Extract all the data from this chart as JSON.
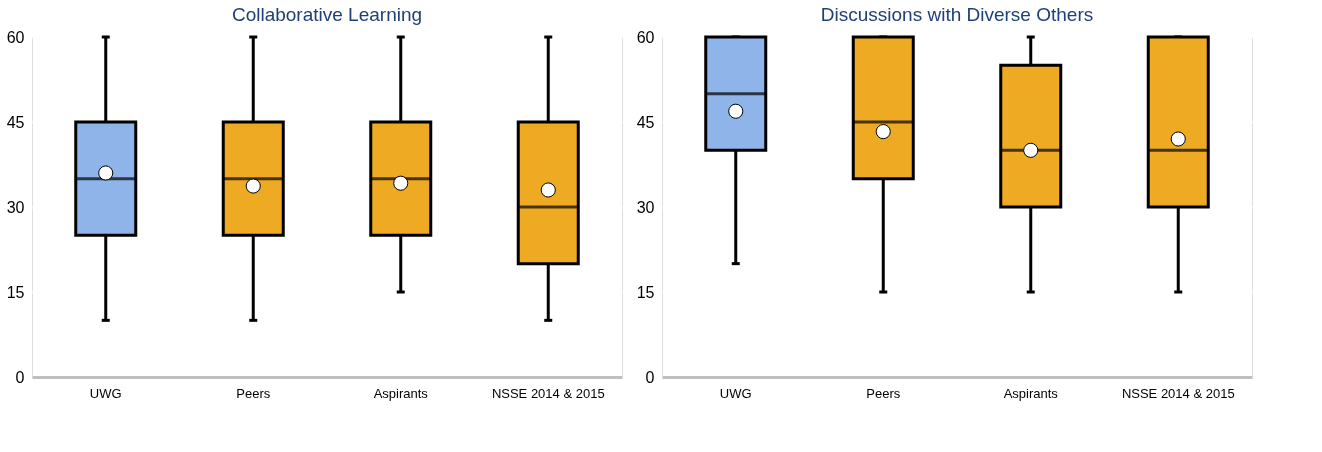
{
  "chart_data": [
    {
      "type": "box",
      "title": "Collaborative Learning",
      "categories": [
        "UWG",
        "Peers",
        "Aspirants",
        "NSSE 2014 & 2015"
      ],
      "colors": [
        "#8eb4ea",
        "#eeaa22",
        "#eeaa22",
        "#eeaa22"
      ],
      "boxes": [
        {
          "low": 10,
          "q1": 25,
          "median": 35,
          "q3": 45,
          "high": 60,
          "mean": 36.0
        },
        {
          "low": 10,
          "q1": 25,
          "median": 35,
          "q3": 45,
          "high": 60,
          "mean": 33.7
        },
        {
          "low": 15,
          "q1": 25,
          "median": 35,
          "q3": 45,
          "high": 60,
          "mean": 34.2
        },
        {
          "low": 10,
          "q1": 20,
          "median": 30,
          "q3": 45,
          "high": 60,
          "mean": 33.0
        }
      ],
      "ylim": [
        0,
        60
      ],
      "yticks": [
        0,
        15,
        30,
        45,
        60
      ],
      "grid": "y",
      "legend": false
    },
    {
      "type": "box",
      "title": "Discussions with Diverse Others",
      "categories": [
        "UWG",
        "Peers",
        "Aspirants",
        "NSSE 2014 & 2015"
      ],
      "colors": [
        "#8eb4ea",
        "#eeaa22",
        "#eeaa22",
        "#eeaa22"
      ],
      "boxes": [
        {
          "low": 20,
          "q1": 40,
          "median": 50,
          "q3": 60,
          "high": 60,
          "mean": 46.9
        },
        {
          "low": 15,
          "q1": 35,
          "median": 45,
          "q3": 60,
          "high": 60,
          "mean": 43.3
        },
        {
          "low": 15,
          "q1": 30,
          "median": 40,
          "q3": 55,
          "high": 60,
          "mean": 40.0
        },
        {
          "low": 15,
          "q1": 30,
          "median": 40,
          "q3": 60,
          "high": 60,
          "mean": 42.0
        }
      ],
      "ylim": [
        0,
        60
      ],
      "yticks": [
        0,
        15,
        30,
        45,
        60
      ],
      "grid": "y",
      "legend": false
    }
  ]
}
